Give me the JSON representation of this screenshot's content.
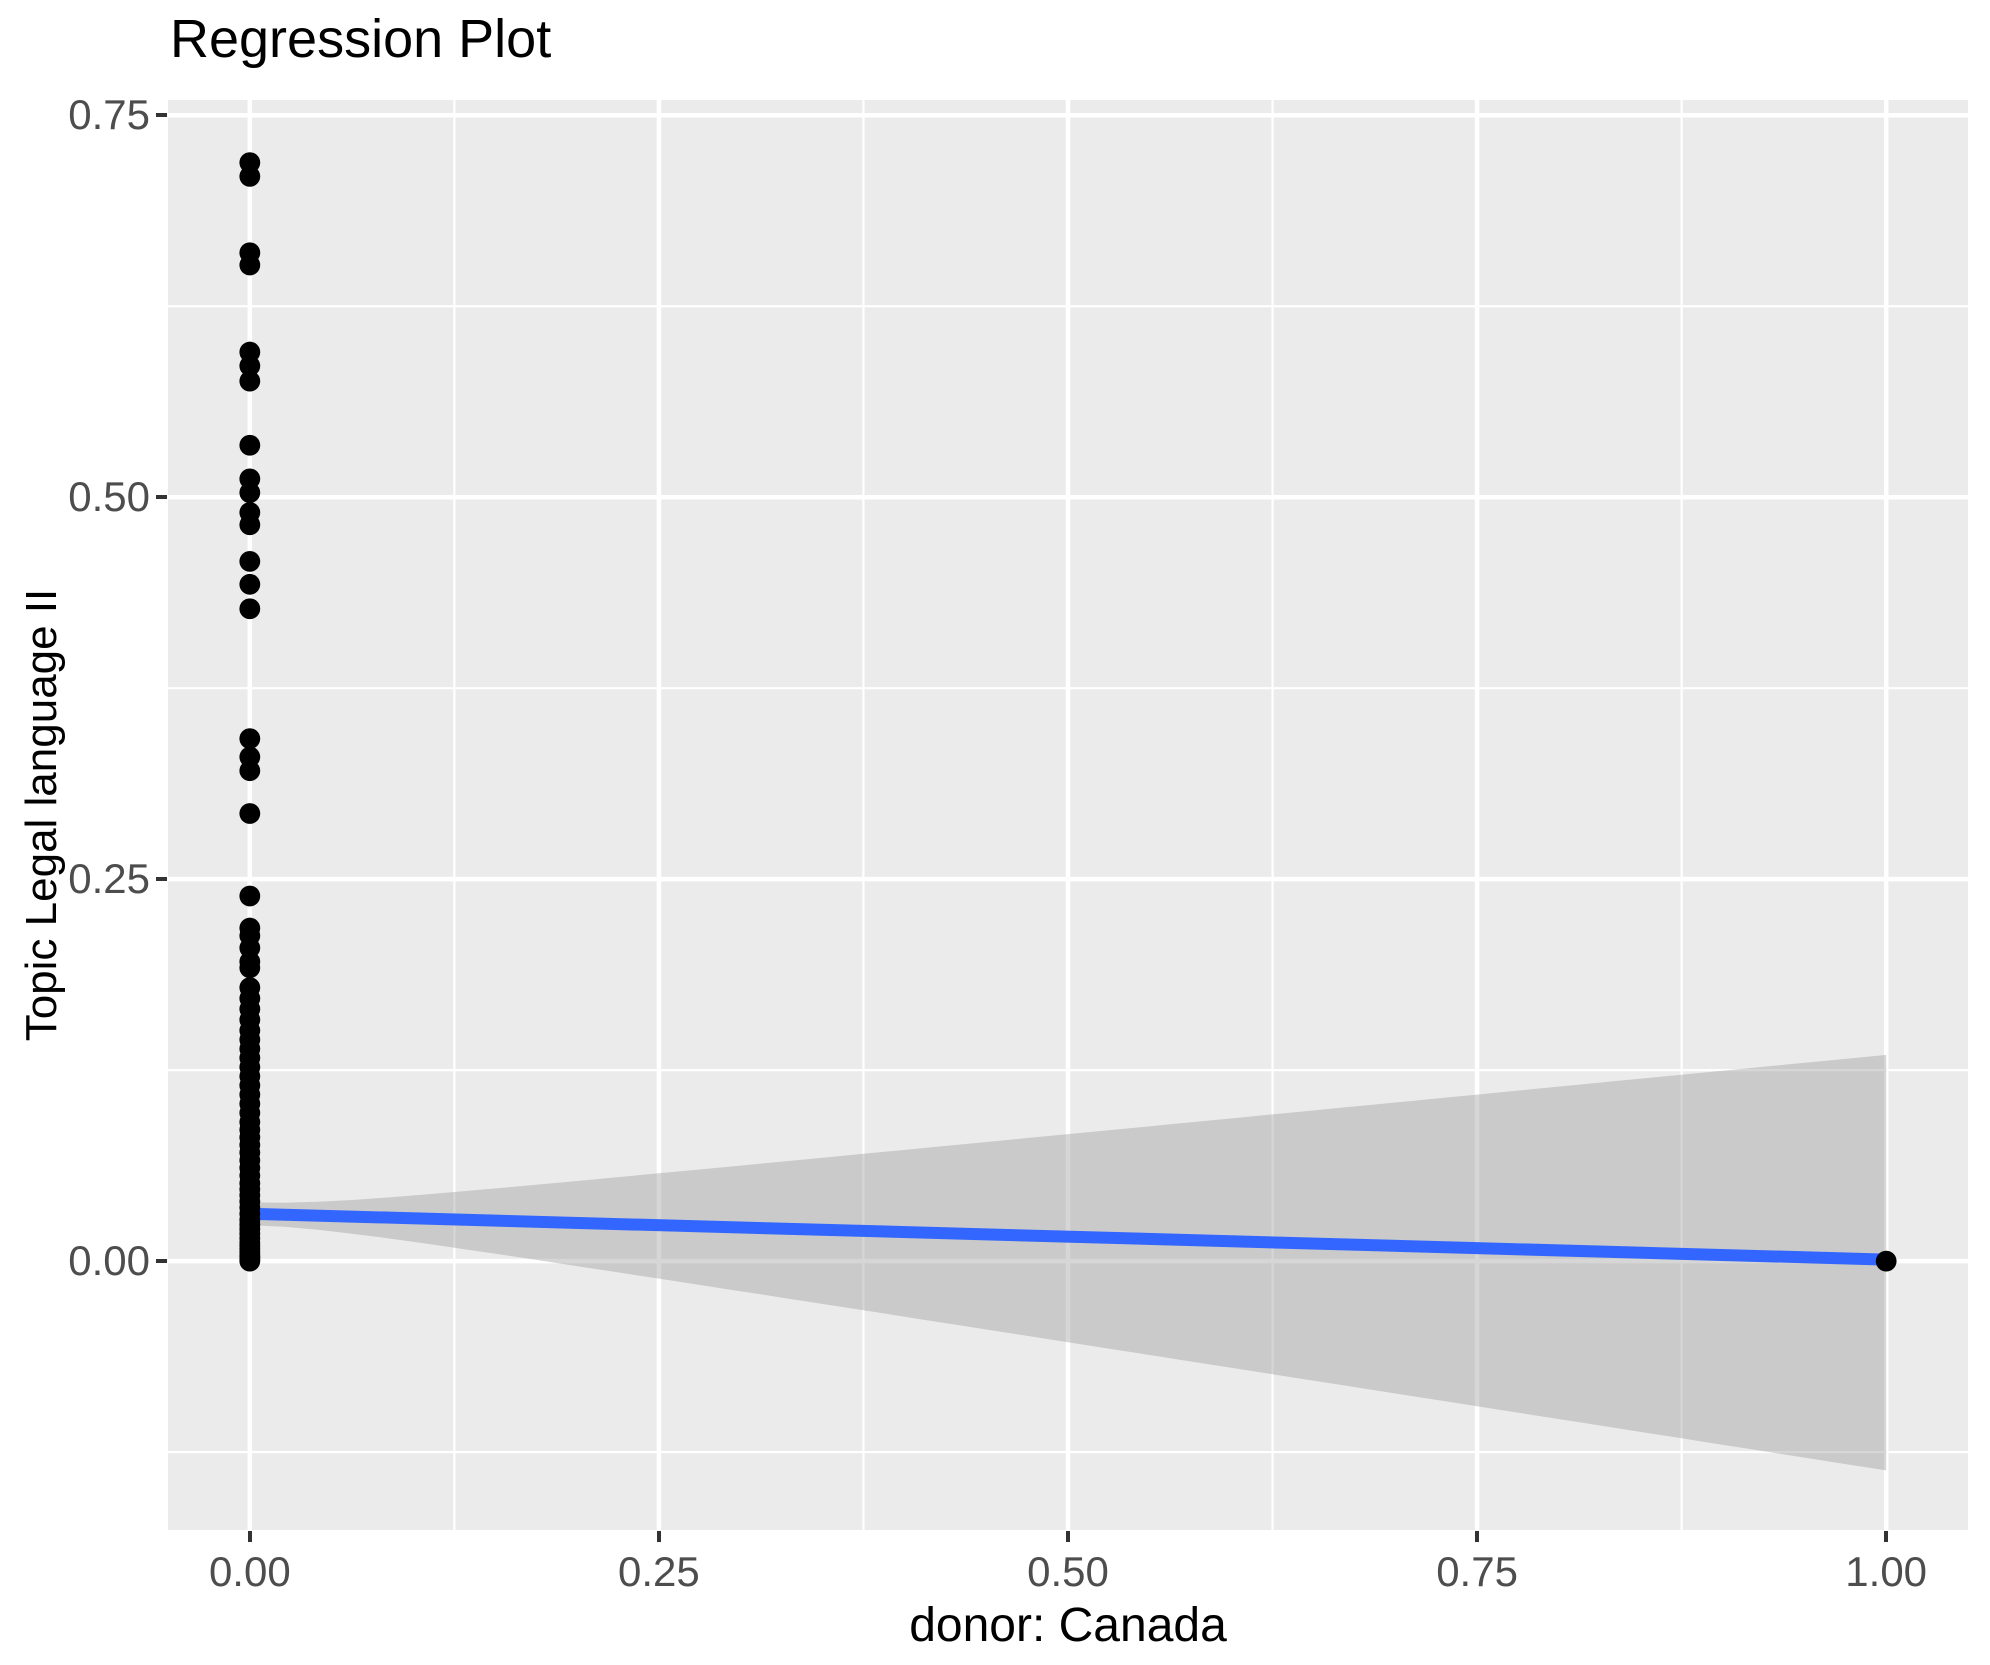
{
  "chart_data": {
    "type": "scatter",
    "title": "Regression Plot",
    "xlabel": "donor: Canada",
    "ylabel": "Topic Legal language II",
    "x_axis": {
      "range": [
        -0.05,
        1.05
      ],
      "ticks": [
        0,
        0.25,
        0.5,
        0.75,
        1.0
      ],
      "tick_labels": [
        "0.00",
        "0.25",
        "0.50",
        "0.75",
        "1.00"
      ],
      "minor_ticks": [
        0.125,
        0.375,
        0.625,
        0.875
      ]
    },
    "y_axis": {
      "range": [
        -0.176,
        0.76
      ],
      "ticks": [
        0,
        0.25,
        0.5,
        0.75
      ],
      "tick_labels": [
        "0.00",
        "0.25",
        "0.50",
        "0.75"
      ],
      "minor_ticks": [
        -0.125,
        0.125,
        0.375,
        0.625
      ]
    },
    "grid": {
      "major_color": "#FFFFFF",
      "minor_color": "#FFFFFF"
    },
    "points": [
      {
        "x": 0,
        "ys": [
          0.719,
          0.71,
          0.66,
          0.652,
          0.595,
          0.586,
          0.576,
          0.534,
          0.512,
          0.503,
          0.49,
          0.482,
          0.458,
          0.443,
          0.427,
          0.342,
          0.33,
          0.321,
          0.293,
          0.239,
          0.218,
          0.213,
          0.205,
          0.196,
          0.192,
          0.179,
          0.172,
          0.165,
          0.158,
          0.151,
          0.145,
          0.139,
          0.133,
          0.127,
          0.121,
          0.115,
          0.109,
          0.103,
          0.097,
          0.091,
          0.086,
          0.081,
          0.076,
          0.071,
          0.066,
          0.061,
          0.056,
          0.051,
          0.047,
          0.043,
          0.039,
          0.035,
          0.031,
          0.027,
          0.024,
          0.021,
          0.018,
          0.015,
          0.012,
          0.01,
          0.008,
          0.006,
          0.004,
          0.003,
          0.002,
          0.001,
          0.0
        ]
      },
      {
        "x": 1,
        "ys": [
          0.0
        ]
      }
    ],
    "regression_line": {
      "x": [
        0,
        1
      ],
      "y": [
        0.031,
        0.001
      ],
      "color": "#3366FF"
    },
    "confidence_band": {
      "x": [
        0,
        1
      ],
      "ymin": [
        0.0235,
        -0.137
      ],
      "ymax": [
        0.0385,
        0.135
      ],
      "fill": "#999999",
      "opacity": 0.4
    },
    "style": {
      "panel_bg": "#EBEBEB",
      "point_color": "#000000",
      "tick_label_color": "#4D4D4D",
      "tick_mark_color": "#333333",
      "title_color": "#000000",
      "axis_title_color": "#000000"
    }
  }
}
